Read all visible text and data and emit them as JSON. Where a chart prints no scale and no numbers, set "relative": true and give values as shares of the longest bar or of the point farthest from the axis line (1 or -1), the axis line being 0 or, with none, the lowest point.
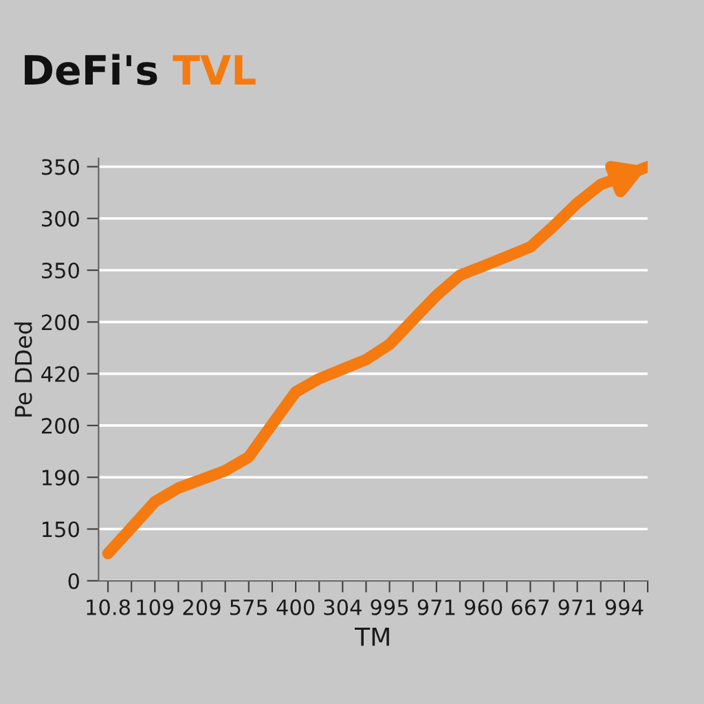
{
  "chart_data": {
    "type": "line",
    "title": "DeFi's TVL",
    "xlabel": "TM",
    "ylabel": "Pe DDed",
    "relative": true,
    "categories": [
      "10.8",
      null,
      "109",
      null,
      "209",
      null,
      "575",
      null,
      "400",
      null,
      "304",
      null,
      "995",
      null,
      "971",
      null,
      "960",
      null,
      "667",
      null,
      "971",
      null,
      "994",
      null
    ],
    "series": [
      {
        "color": "#f57a10",
        "values": [
          0.066,
          0.128,
          0.191,
          0.224,
          0.245,
          0.266,
          0.299,
          0.378,
          0.456,
          0.488,
          0.511,
          0.534,
          0.571,
          0.63,
          0.689,
          0.738,
          0.76,
          0.783,
          0.806,
          0.857,
          0.912,
          0.957,
          0.978,
          1
        ]
      }
    ],
    "annotations": [
      "0",
      "150",
      "190",
      "200",
      "420",
      "200",
      "350",
      "300",
      "350"
    ],
    "grid": "y",
    "marker": "none",
    "line_style": "solid",
    "legend": false
  }
}
